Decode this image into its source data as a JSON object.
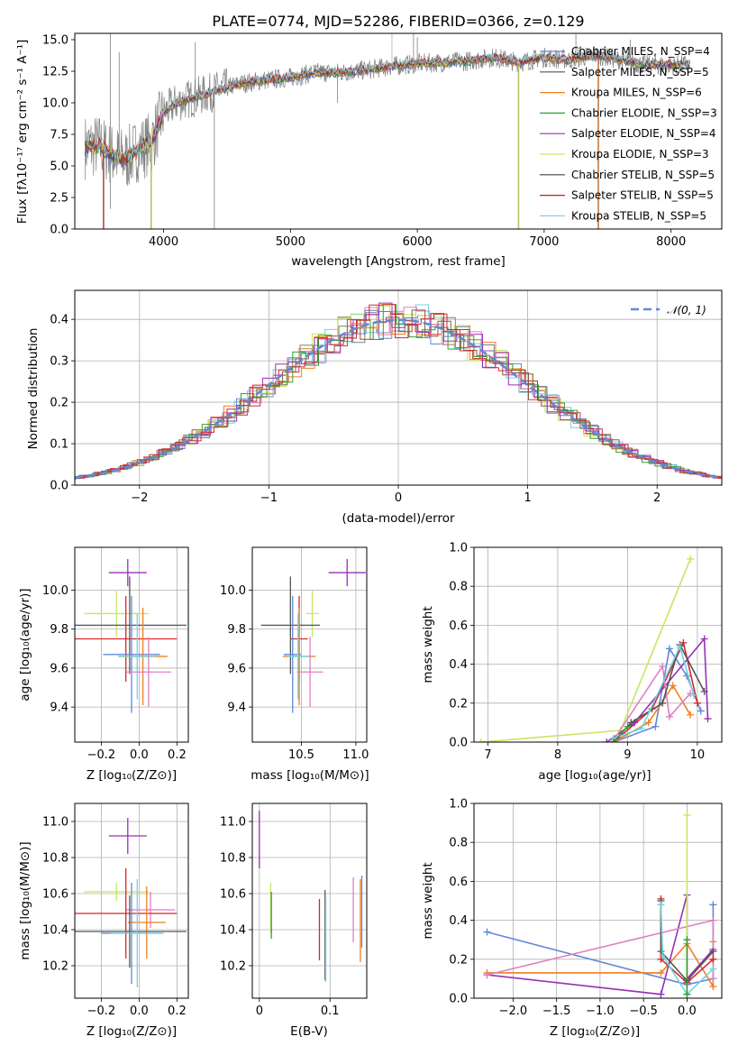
{
  "colors": [
    "#6088d8",
    "#f07f1e",
    "#30a030",
    "#d62728",
    "#9b2fb5",
    "#8c564b",
    "#e07fc2",
    "#7f7f7f",
    "#c8e65f",
    "#6fd4e0",
    "#555555",
    "#b22222",
    "#88d0e0",
    "#d8e060",
    "#a050c0"
  ],
  "chart_data": [
    {
      "id": "spectrum",
      "type": "line",
      "title": "PLATE=0774, MJD=52286, FIBERID=0366, z=0.129",
      "xlabel": "wavelength [Angstrom, rest frame]",
      "ylabel": "Flux [fλ10⁻¹⁷ erg cm⁻² s⁻¹ A⁻¹]",
      "xlim": [
        3300,
        8400
      ],
      "ylim": [
        0,
        15.5
      ],
      "xticks": [
        "4000",
        "5000",
        "6000",
        "7000",
        "8000"
      ],
      "yticks": [
        "0.0",
        "2.5",
        "5.0",
        "7.5",
        "10.0",
        "12.5",
        "15.0"
      ],
      "grid": false,
      "legend_position": "top-right",
      "series": [
        {
          "name": "Chabrier MILES, N_SSP=4",
          "color": "#6088d8"
        },
        {
          "name": "Salpeter MILES, N_SSP=5",
          "color": "#555555"
        },
        {
          "name": "Kroupa MILES, N_SSP=6",
          "color": "#f07f1e"
        },
        {
          "name": "Chabrier ELODIE, N_SSP=3",
          "color": "#30a030"
        },
        {
          "name": "Salpeter ELODIE, N_SSP=4",
          "color": "#9b2fb5"
        },
        {
          "name": "Kroupa ELODIE, N_SSP=3",
          "color": "#d8e060"
        },
        {
          "name": "Chabrier STELIB, N_SSP=5",
          "color": "#404040"
        },
        {
          "name": "Salpeter STELIB, N_SSP=5",
          "color": "#b22222"
        },
        {
          "name": "Kroupa STELIB, N_SSP=5",
          "color": "#88d0e0"
        }
      ],
      "envelope": {
        "x": [
          3380,
          3500,
          3600,
          3700,
          3800,
          3900,
          4000,
          4100,
          4200,
          4400,
          4600,
          4800,
          5000,
          5200,
          5400,
          5600,
          5800,
          6000,
          6200,
          6400,
          6600,
          6800,
          7000,
          7200,
          7400,
          7600,
          7800,
          8000,
          8150
        ],
        "y": [
          6.5,
          6.6,
          5.8,
          5.5,
          6.3,
          6.8,
          9.2,
          10.0,
          10.3,
          10.9,
          11.5,
          11.8,
          12.0,
          12.4,
          12.4,
          12.6,
          12.9,
          13.1,
          13.2,
          13.3,
          13.6,
          13.2,
          13.6,
          13.4,
          13.8,
          13.4,
          13.0,
          13.0,
          13.0
        ]
      },
      "dips": [
        {
          "x": 3530,
          "y": 0
        },
        {
          "x": 3580,
          "y": 1.6
        },
        {
          "x": 3900,
          "y": 0
        },
        {
          "x": 4400,
          "y": 0
        },
        {
          "x": 5370,
          "y": 10.0
        },
        {
          "x": 6800,
          "y": 0
        },
        {
          "x": 7430,
          "y": 0
        }
      ],
      "spikes": [
        {
          "x": 3580,
          "y": 15.5
        },
        {
          "x": 3650,
          "y": 14.0
        },
        {
          "x": 4250,
          "y": 14.8
        },
        {
          "x": 5970,
          "y": 15.5
        },
        {
          "x": 6000,
          "y": 15.2
        },
        {
          "x": 7250,
          "y": 15.5
        },
        {
          "x": 7680,
          "y": 15.0
        }
      ]
    },
    {
      "id": "residuals",
      "type": "histogram",
      "xlabel": "(data-model)/error",
      "ylabel": "Normed distribution",
      "xlim": [
        -2.5,
        2.5
      ],
      "ylim": [
        0,
        0.47
      ],
      "xticks": [
        "−2",
        "−1",
        "0",
        "1",
        "2"
      ],
      "yticks": [
        "0.0",
        "0.1",
        "0.2",
        "0.3",
        "0.4"
      ],
      "grid": true,
      "legend_position": "top-right",
      "legend": [
        "𝒩(0, 1)"
      ],
      "bin_width": 0.1,
      "gaussian": {
        "mean": 0,
        "sigma": 1,
        "color": "#6088d8"
      }
    },
    {
      "id": "z-vs-age",
      "type": "scatter",
      "xlabel": "Z [log₁₀(Z/Z⊙)]",
      "ylabel": "age  [log₁₀(age/yr)]",
      "xlim": [
        -0.34,
        0.26
      ],
      "ylim": [
        9.22,
        10.22
      ],
      "xticks": [
        "−0.2",
        "0.0",
        "0.2"
      ],
      "yticks": [
        "9.4",
        "9.6",
        "9.8",
        "10.0"
      ],
      "grid": true,
      "points": [
        {
          "x": -0.06,
          "y": 10.09,
          "xerr": 0.1,
          "yerr": 0.07,
          "c": 4
        },
        {
          "x": -0.12,
          "y": 9.88,
          "xerr": 0.17,
          "yerr": 0.12,
          "c": 8
        },
        {
          "x": -0.05,
          "y": 9.82,
          "xerr": 0.3,
          "yerr": 0.25,
          "c": 10
        },
        {
          "x": -0.07,
          "y": 9.75,
          "xerr": 0.27,
          "yerr": 0.22,
          "c": 3
        },
        {
          "x": -0.04,
          "y": 9.67,
          "xerr": 0.15,
          "yerr": 0.3,
          "c": 0
        },
        {
          "x": 0.02,
          "y": 9.66,
          "xerr": 0.13,
          "yerr": 0.25,
          "c": 1
        },
        {
          "x": -0.01,
          "y": 9.66,
          "xerr": 0.1,
          "yerr": 0.22,
          "c": 9
        },
        {
          "x": 0.05,
          "y": 9.58,
          "xerr": 0.12,
          "yerr": 0.18,
          "c": 6
        }
      ]
    },
    {
      "id": "mass-vs-age",
      "type": "scatter",
      "xlabel": "mass [log₁₀(M/M⊙)]",
      "ylabel": "",
      "xlim": [
        10.05,
        11.1
      ],
      "ylim": [
        9.22,
        10.22
      ],
      "xticks": [
        "10.5",
        "11.0"
      ],
      "yticks": [
        "9.4",
        "9.6",
        "9.8",
        "10.0"
      ],
      "grid": true,
      "points": [
        {
          "x": 10.92,
          "y": 10.09,
          "xerr": 0.17,
          "yerr": 0.07,
          "c": 4
        },
        {
          "x": 10.6,
          "y": 9.88,
          "xerr": 0.06,
          "yerr": 0.12,
          "c": 8
        },
        {
          "x": 10.4,
          "y": 9.82,
          "xerr": 0.27,
          "yerr": 0.25,
          "c": 10
        },
        {
          "x": 10.48,
          "y": 9.75,
          "xerr": 0.08,
          "yerr": 0.22,
          "c": 3
        },
        {
          "x": 10.42,
          "y": 9.67,
          "xerr": 0.08,
          "yerr": 0.3,
          "c": 0
        },
        {
          "x": 10.48,
          "y": 9.66,
          "xerr": 0.15,
          "yerr": 0.25,
          "c": 1
        },
        {
          "x": 10.47,
          "y": 9.66,
          "xerr": 0.1,
          "yerr": 0.22,
          "c": 9
        },
        {
          "x": 10.58,
          "y": 9.58,
          "xerr": 0.12,
          "yerr": 0.18,
          "c": 6
        }
      ]
    },
    {
      "id": "z-vs-mass",
      "type": "scatter",
      "xlabel": "Z [log₁₀(Z/Z⊙)]",
      "ylabel": "mass [log₁₀(M/M⊙)]",
      "xlim": [
        -0.34,
        0.26
      ],
      "ylim": [
        10.02,
        11.1
      ],
      "xticks": [
        "−0.2",
        "0.0",
        "0.2"
      ],
      "yticks": [
        "10.2",
        "10.4",
        "10.6",
        "10.8",
        "11.0"
      ],
      "grid": true,
      "points": [
        {
          "x": -0.06,
          "y": 10.92,
          "xerr": 0.1,
          "yerr": 0.1,
          "c": 4
        },
        {
          "x": -0.12,
          "y": 10.61,
          "xerr": 0.17,
          "yerr": 0.05,
          "c": 8
        },
        {
          "x": 0.06,
          "y": 10.51,
          "xerr": 0.13,
          "yerr": 0.1,
          "c": 6
        },
        {
          "x": -0.07,
          "y": 10.49,
          "xerr": 0.27,
          "yerr": 0.25,
          "c": 3
        },
        {
          "x": 0.04,
          "y": 10.44,
          "xerr": 0.1,
          "yerr": 0.2,
          "c": 1
        },
        {
          "x": -0.05,
          "y": 10.39,
          "xerr": 0.3,
          "yerr": 0.2,
          "c": 10
        },
        {
          "x": -0.04,
          "y": 10.38,
          "xerr": 0.16,
          "yerr": 0.28,
          "c": 0
        },
        {
          "x": -0.01,
          "y": 10.38,
          "xerr": 0.14,
          "yerr": 0.3,
          "c": 9
        }
      ]
    },
    {
      "id": "ebv-vs-mass",
      "type": "scatter",
      "xlabel": "E(B-V)",
      "ylabel": "",
      "xlim": [
        -0.01,
        0.152
      ],
      "ylim": [
        10.02,
        11.1
      ],
      "xticks": [
        "0",
        "0.1"
      ],
      "yticks": [
        "10.2",
        "10.4",
        "10.6",
        "10.8",
        "11.0"
      ],
      "grid": true,
      "points": [
        {
          "x": 0.0,
          "y": 10.9,
          "xerr": 0,
          "yerr": 0.16,
          "c": 4
        },
        {
          "x": 0.016,
          "y": 10.52,
          "xerr": 0,
          "yerr": 0.14,
          "c": 8
        },
        {
          "x": 0.017,
          "y": 10.48,
          "xerr": 0,
          "yerr": 0.13,
          "c": 2
        },
        {
          "x": 0.085,
          "y": 10.4,
          "xerr": 0,
          "yerr": 0.17,
          "c": 3
        },
        {
          "x": 0.093,
          "y": 10.37,
          "xerr": 0,
          "yerr": 0.25,
          "c": 10
        },
        {
          "x": 0.094,
          "y": 10.34,
          "xerr": 0,
          "yerr": 0.23,
          "c": 9
        },
        {
          "x": 0.133,
          "y": 10.51,
          "xerr": 0,
          "yerr": 0.18,
          "c": 6
        },
        {
          "x": 0.143,
          "y": 10.45,
          "xerr": 0,
          "yerr": 0.23,
          "c": 1
        },
        {
          "x": 0.145,
          "y": 10.5,
          "xerr": 0,
          "yerr": 0.2,
          "c": 0
        }
      ]
    },
    {
      "id": "age-vs-weight",
      "type": "line",
      "xlabel": "age  [log₁₀(age/yr)]",
      "ylabel": "mass weight",
      "xlim": [
        6.8,
        10.35
      ],
      "ylim": [
        0,
        1.0
      ],
      "xticks": [
        "7",
        "8",
        "9",
        "10"
      ],
      "yticks": [
        "0.0",
        "0.2",
        "0.4",
        "0.6",
        "0.8",
        "1.0"
      ],
      "grid": true,
      "series": [
        {
          "c": 8,
          "points": [
            [
              6.9,
              0.0
            ],
            [
              8.9,
              0.06
            ],
            [
              9.9,
              0.94
            ]
          ]
        },
        {
          "c": 0,
          "points": [
            [
              8.8,
              0.0
            ],
            [
              9.4,
              0.08
            ],
            [
              9.6,
              0.48
            ],
            [
              9.85,
              0.34
            ],
            [
              10.05,
              0.16
            ]
          ]
        },
        {
          "c": 1,
          "points": [
            [
              8.8,
              0.0
            ],
            [
              9.3,
              0.1
            ],
            [
              9.65,
              0.29
            ],
            [
              9.9,
              0.14
            ]
          ]
        },
        {
          "c": 3,
          "points": [
            [
              8.8,
              0.0
            ],
            [
              9.35,
              0.17
            ],
            [
              9.8,
              0.51
            ],
            [
              10.0,
              0.2
            ]
          ]
        },
        {
          "c": 4,
          "points": [
            [
              8.7,
              0.0
            ],
            [
              9.1,
              0.1
            ],
            [
              10.1,
              0.53
            ],
            [
              10.15,
              0.12
            ]
          ]
        },
        {
          "c": 6,
          "points": [
            [
              8.8,
              0.01
            ],
            [
              9.5,
              0.39
            ],
            [
              9.6,
              0.13
            ],
            [
              9.9,
              0.25
            ]
          ]
        },
        {
          "c": 10,
          "points": [
            [
              8.8,
              0.0
            ],
            [
              9.05,
              0.1
            ],
            [
              9.5,
              0.2
            ],
            [
              9.75,
              0.5
            ],
            [
              10.1,
              0.26
            ]
          ]
        },
        {
          "c": 9,
          "points": [
            [
              8.8,
              0.02
            ],
            [
              9.2,
              0.07
            ],
            [
              9.75,
              0.49
            ],
            [
              9.95,
              0.24
            ]
          ]
        },
        {
          "c": 2,
          "points": [
            [
              8.8,
              0.0
            ],
            [
              9.0,
              0.08
            ]
          ]
        }
      ]
    },
    {
      "id": "z-vs-weight",
      "type": "line",
      "xlabel": "Z [log₁₀(Z/Z⊙)]",
      "ylabel": "mass weight",
      "xlim": [
        -2.45,
        0.4
      ],
      "ylim": [
        0,
        1.0
      ],
      "xticks": [
        "−2.0",
        "−1.5",
        "−1.0",
        "−0.5",
        "0.0"
      ],
      "yticks": [
        "0.0",
        "0.2",
        "0.4",
        "0.6",
        "0.8",
        "1.0"
      ],
      "grid": true,
      "series": [
        {
          "c": 0,
          "points": [
            [
              -2.3,
              0.34
            ],
            [
              0.0,
              0.07
            ],
            [
              0.3,
              0.1
            ],
            [
              0.3,
              0.48
            ]
          ]
        },
        {
          "c": 1,
          "points": [
            [
              -2.3,
              0.13
            ],
            [
              -0.3,
              0.13
            ],
            [
              0.0,
              0.28
            ],
            [
              0.3,
              0.06
            ],
            [
              0.3,
              0.29
            ]
          ]
        },
        {
          "c": 4,
          "points": [
            [
              -2.3,
              0.12
            ],
            [
              -0.3,
              0.02
            ],
            [
              0.0,
              0.53
            ],
            [
              0.0,
              0.1
            ],
            [
              0.3,
              0.25
            ]
          ]
        },
        {
          "c": 6,
          "points": [
            [
              -2.3,
              0.12
            ],
            [
              0.3,
              0.4
            ],
            [
              0.3,
              0.1
            ]
          ]
        },
        {
          "c": 8,
          "points": [
            [
              0.0,
              0.94
            ],
            [
              0.0,
              0.0
            ]
          ]
        },
        {
          "c": 3,
          "points": [
            [
              -0.3,
              0.51
            ],
            [
              -0.3,
              0.2
            ],
            [
              0.0,
              0.08
            ],
            [
              0.3,
              0.2
            ]
          ]
        },
        {
          "c": 10,
          "points": [
            [
              -0.3,
              0.5
            ],
            [
              -0.3,
              0.24
            ],
            [
              0.0,
              0.09
            ],
            [
              0.3,
              0.24
            ]
          ]
        },
        {
          "c": 9,
          "points": [
            [
              -0.3,
              0.48
            ],
            [
              -0.28,
              0.22
            ],
            [
              0.0,
              0.02
            ],
            [
              0.3,
              0.15
            ]
          ]
        },
        {
          "c": 2,
          "points": [
            [
              0.0,
              0.02
            ],
            [
              0.0,
              0.3
            ]
          ]
        }
      ]
    }
  ]
}
